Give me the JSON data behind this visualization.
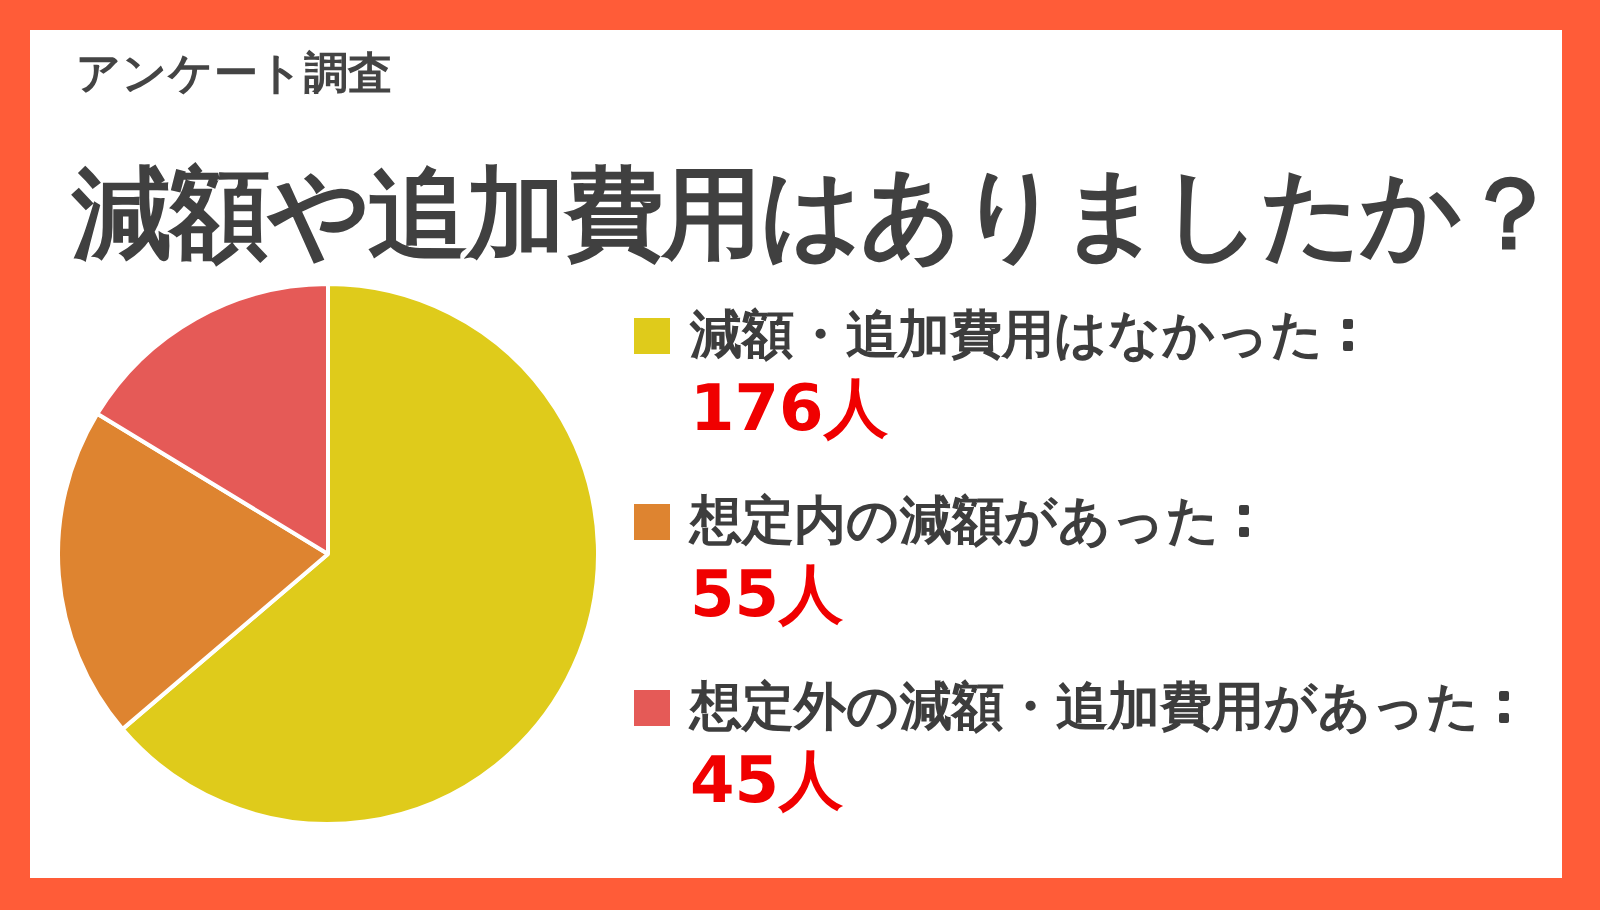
{
  "chart_data": {
    "type": "pie",
    "subtitle": "アンケート調査",
    "title": "減額や追加費用はありましたか？",
    "categories": [
      "減額・追加費用はなかった",
      "想定内の減額があった",
      "想定外の減額・追加費用があった"
    ],
    "values": [
      176,
      55,
      45
    ],
    "value_labels": [
      "176人",
      "55人",
      "45人"
    ],
    "colors": [
      "#dfcb1b",
      "#de8430",
      "#e55a57"
    ],
    "legend": "right"
  }
}
